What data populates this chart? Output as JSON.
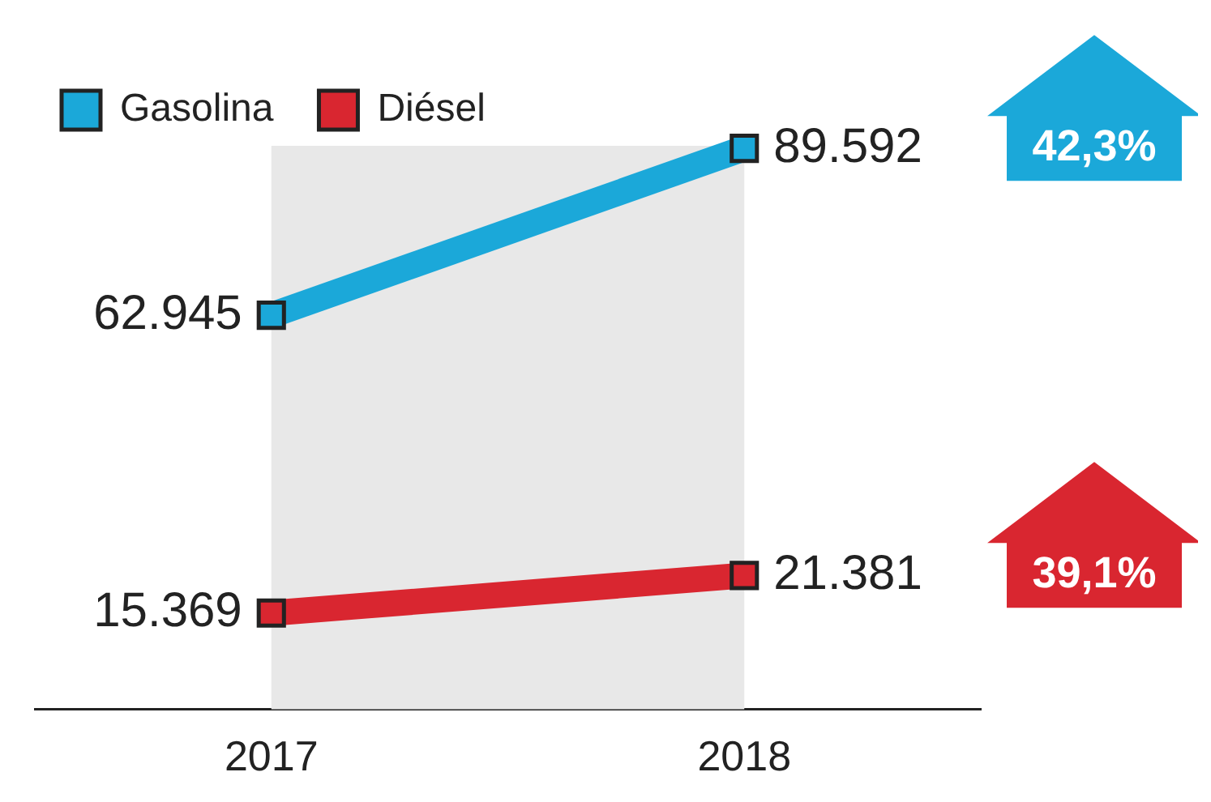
{
  "chart_data": {
    "type": "line",
    "categories": [
      "2017",
      "2018"
    ],
    "series": [
      {
        "name": "Gasolina",
        "color": "#1ba8d9",
        "values": [
          62945,
          89592
        ],
        "value_labels": [
          "62.945",
          "89.592"
        ]
      },
      {
        "name": "Diésel",
        "color": "#d92630",
        "values": [
          15369,
          21381
        ],
        "value_labels": [
          "15.369",
          "21.381"
        ]
      }
    ],
    "annotations": [
      "42,3%",
      "39,1%"
    ],
    "bands": [
      {
        "axis": "x",
        "from": "2017",
        "to": "2018",
        "color": "#e8e8e8"
      }
    ],
    "marker": "square",
    "legend": "top left",
    "grid": false,
    "tick_labels": "x"
  }
}
